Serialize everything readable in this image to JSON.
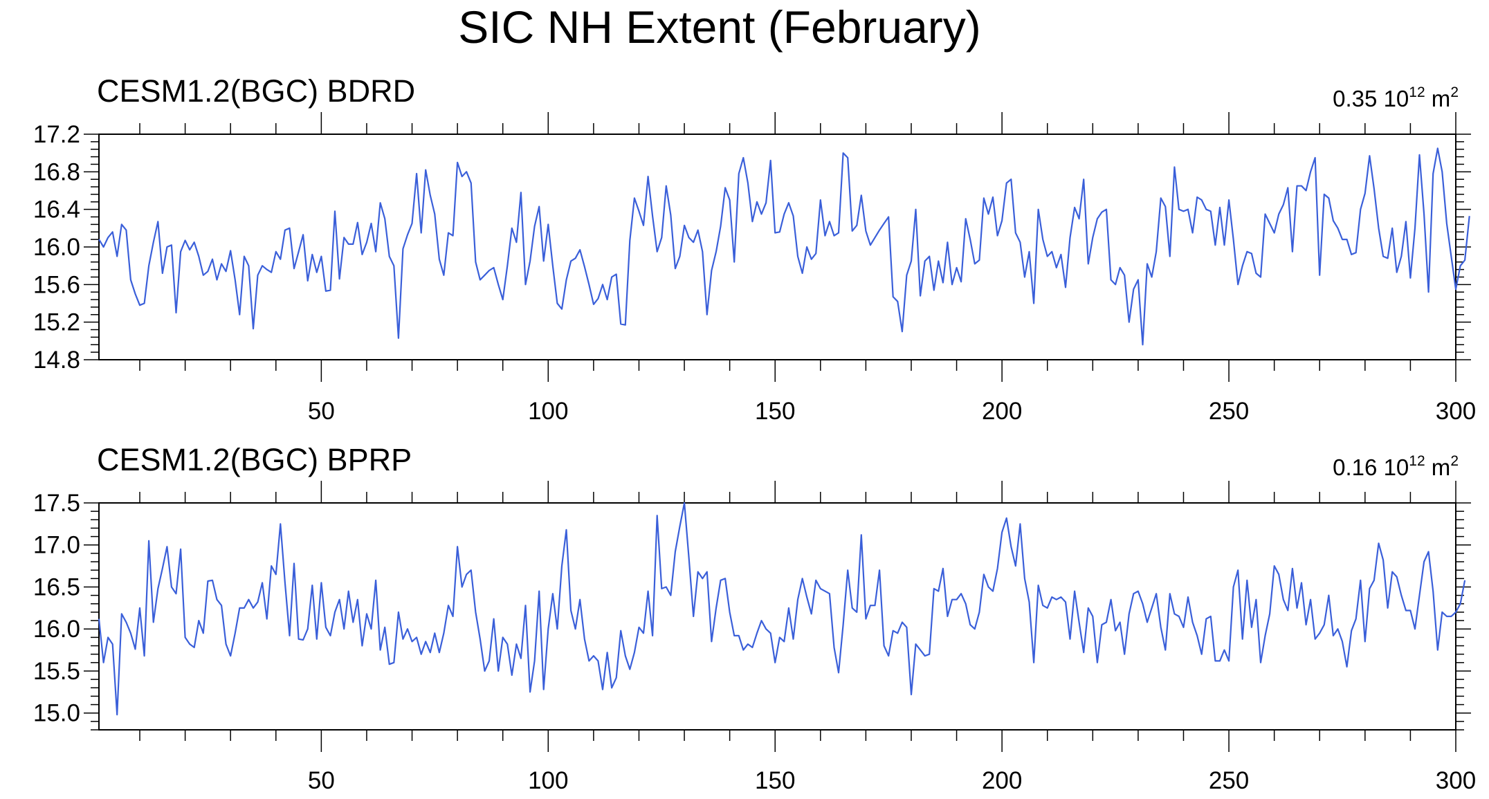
{
  "figure": {
    "title": "SIC NH Extent (February)"
  },
  "chart_data": [
    {
      "type": "line",
      "title": "CESM1.2(BGC) BDRD",
      "annotation": {
        "value": "0.35",
        "base": "10",
        "exp": "12",
        "unit": "m",
        "unit_exp": "2"
      },
      "xlim": [
        1,
        300
      ],
      "ylim": [
        14.8,
        17.2
      ],
      "xticks": [
        50,
        100,
        150,
        200,
        250,
        300
      ],
      "xtick_labels": [
        "50",
        "100",
        "150",
        "200",
        "250",
        "300"
      ],
      "yticks": [
        14.8,
        15.2,
        15.6,
        16.0,
        16.4,
        16.8,
        17.2
      ],
      "ytick_labels": [
        "14.8",
        "15.2",
        "15.6",
        "16.0",
        "16.4",
        "16.8",
        "17.2"
      ],
      "line_color": "#3a5fd9",
      "grid": false,
      "x_start": 1,
      "values": [
        16.08,
        16.0,
        16.1,
        16.16,
        15.9,
        16.24,
        16.18,
        15.65,
        15.5,
        15.38,
        15.4,
        15.8,
        16.05,
        16.27,
        15.72,
        16.0,
        16.02,
        15.3,
        15.95,
        16.07,
        15.97,
        16.05,
        15.9,
        15.7,
        15.74,
        15.87,
        15.65,
        15.82,
        15.74,
        15.96,
        15.65,
        15.28,
        15.9,
        15.8,
        15.13,
        15.7,
        15.8,
        15.76,
        15.73,
        15.95,
        15.87,
        16.18,
        16.2,
        15.77,
        15.95,
        16.13,
        15.64,
        15.92,
        15.73,
        15.9,
        15.53,
        15.54,
        16.38,
        15.66,
        16.1,
        16.03,
        16.03,
        16.26,
        15.92,
        16.05,
        16.25,
        15.95,
        16.47,
        16.3,
        15.9,
        15.8,
        15.03,
        15.98,
        16.13,
        16.25,
        16.78,
        16.15,
        16.82,
        16.55,
        16.35,
        15.87,
        15.7,
        16.15,
        16.12,
        16.9,
        16.75,
        16.8,
        16.68,
        15.84,
        15.65,
        15.7,
        15.75,
        15.78,
        15.6,
        15.44,
        15.8,
        16.2,
        16.05,
        16.58,
        15.6,
        15.85,
        16.22,
        16.43,
        15.85,
        16.24,
        15.8,
        15.4,
        15.34,
        15.65,
        15.85,
        15.88,
        15.97,
        15.79,
        15.6,
        15.39,
        15.45,
        15.6,
        15.44,
        15.68,
        15.71,
        15.18,
        15.17,
        16.07,
        16.52,
        16.38,
        16.23,
        16.75,
        16.33,
        15.95,
        16.1,
        16.65,
        16.34,
        15.77,
        15.9,
        16.23,
        16.1,
        16.05,
        16.18,
        15.95,
        15.28,
        15.75,
        15.95,
        16.22,
        16.63,
        16.5,
        15.84,
        16.78,
        16.95,
        16.68,
        16.27,
        16.48,
        16.35,
        16.47,
        16.92,
        16.15,
        16.16,
        16.35,
        16.47,
        16.33,
        15.9,
        15.72,
        16.0,
        15.87,
        15.93,
        16.5,
        16.12,
        16.27,
        16.12,
        16.15,
        17.0,
        16.95,
        16.17,
        16.23,
        16.55,
        16.17,
        16.02,
        16.1,
        16.18,
        16.25,
        16.32,
        15.47,
        15.42,
        15.1,
        15.7,
        15.85,
        16.4,
        15.48,
        15.85,
        15.9,
        15.54,
        15.85,
        15.62,
        16.05,
        15.6,
        15.78,
        15.63,
        16.3,
        16.08,
        15.82,
        15.86,
        16.52,
        16.35,
        16.53,
        16.12,
        16.28,
        16.68,
        16.72,
        16.15,
        16.05,
        15.68,
        15.95,
        15.4,
        16.4,
        16.08,
        15.9,
        15.95,
        15.78,
        15.92,
        15.57,
        16.1,
        16.42,
        16.3,
        16.72,
        15.82,
        16.1,
        16.3,
        16.37,
        16.4,
        15.65,
        15.6,
        15.78,
        15.7,
        15.2,
        15.55,
        15.65,
        14.96,
        15.82,
        15.68,
        15.95,
        16.52,
        16.43,
        15.9,
        16.85,
        16.4,
        16.38,
        16.4,
        16.15,
        16.53,
        16.5,
        16.4,
        16.38,
        16.02,
        16.42,
        16.02,
        16.5,
        16.08,
        15.6,
        15.8,
        15.95,
        15.93,
        15.72,
        15.68,
        16.35,
        16.25,
        16.15,
        16.35,
        16.45,
        16.63,
        15.95,
        16.65,
        16.65,
        16.6,
        16.8,
        16.95,
        15.7,
        16.56,
        16.52,
        16.28,
        16.2,
        16.08,
        16.08,
        15.92,
        15.94,
        16.4,
        16.57,
        16.97,
        16.62,
        16.2,
        15.9,
        15.88,
        16.2,
        15.73,
        15.9,
        16.27,
        15.67,
        16.2,
        16.98,
        16.35,
        15.52,
        16.78,
        17.05,
        16.8,
        16.25,
        15.9,
        15.55,
        15.8,
        15.86,
        16.33
      ]
    },
    {
      "type": "line",
      "title": "CESM1.2(BGC) BPRP",
      "annotation": {
        "value": "0.16",
        "base": "10",
        "exp": "12",
        "unit": "m",
        "unit_exp": "2"
      },
      "xlim": [
        1,
        300
      ],
      "ylim": [
        14.8,
        17.5
      ],
      "xticks": [
        50,
        100,
        150,
        200,
        250,
        300
      ],
      "xtick_labels": [
        "50",
        "100",
        "150",
        "200",
        "250",
        "300"
      ],
      "yticks": [
        15.0,
        15.5,
        16.0,
        16.5,
        17.0,
        17.5
      ],
      "ytick_labels": [
        "15.0",
        "15.5",
        "16.0",
        "16.5",
        "17.0",
        "17.5"
      ],
      "line_color": "#3a5fd9",
      "grid": false,
      "x_start": 1,
      "values": [
        16.12,
        15.6,
        15.9,
        15.82,
        14.98,
        16.18,
        16.08,
        15.95,
        15.76,
        16.25,
        15.68,
        17.05,
        16.08,
        16.48,
        16.72,
        16.98,
        16.5,
        16.42,
        16.95,
        15.9,
        15.82,
        15.78,
        16.1,
        15.95,
        16.57,
        16.58,
        16.35,
        16.28,
        15.82,
        15.68,
        15.95,
        16.25,
        16.25,
        16.35,
        16.25,
        16.32,
        16.55,
        16.12,
        16.75,
        16.65,
        17.25,
        16.55,
        15.92,
        16.78,
        15.88,
        15.87,
        16.0,
        16.52,
        15.88,
        16.55,
        16.02,
        15.92,
        16.2,
        16.35,
        16.0,
        16.45,
        16.08,
        16.35,
        15.8,
        16.18,
        16.0,
        16.58,
        15.75,
        16.02,
        15.58,
        15.6,
        16.2,
        15.88,
        16.0,
        15.85,
        15.9,
        15.7,
        15.85,
        15.72,
        15.95,
        15.72,
        15.95,
        16.28,
        16.15,
        16.98,
        16.5,
        16.65,
        16.7,
        16.2,
        15.88,
        15.5,
        15.62,
        16.12,
        15.5,
        15.9,
        15.82,
        15.45,
        15.82,
        15.65,
        16.28,
        15.25,
        15.62,
        16.45,
        15.28,
        16.0,
        16.42,
        16.0,
        16.75,
        17.18,
        16.22,
        16.0,
        16.35,
        15.88,
        15.62,
        15.68,
        15.62,
        15.28,
        15.72,
        15.3,
        15.42,
        15.98,
        15.68,
        15.52,
        15.72,
        16.02,
        15.95,
        16.45,
        15.92,
        17.35,
        16.48,
        16.5,
        16.4,
        16.92,
        17.22,
        17.5,
        16.85,
        16.15,
        16.68,
        16.6,
        16.68,
        15.85,
        16.25,
        16.58,
        16.6,
        16.2,
        15.92,
        15.92,
        15.75,
        15.82,
        15.78,
        15.95,
        16.1,
        16.0,
        15.95,
        15.6,
        15.9,
        15.85,
        16.25,
        15.88,
        16.35,
        16.6,
        16.38,
        16.18,
        16.58,
        16.48,
        16.45,
        16.42,
        15.78,
        15.48,
        16.05,
        16.7,
        16.25,
        16.2,
        17.12,
        16.12,
        16.28,
        16.28,
        16.7,
        15.8,
        15.68,
        15.98,
        15.95,
        16.08,
        16.02,
        15.22,
        15.82,
        15.75,
        15.68,
        15.7,
        16.48,
        16.45,
        16.72,
        16.15,
        16.35,
        16.35,
        16.42,
        16.3,
        16.05,
        16.0,
        16.2,
        16.65,
        16.5,
        16.45,
        16.72,
        17.15,
        17.32,
        16.98,
        16.75,
        17.25,
        16.6,
        16.32,
        15.6,
        16.52,
        16.28,
        16.25,
        16.38,
        16.35,
        16.38,
        16.32,
        15.88,
        16.45,
        16.08,
        15.72,
        16.25,
        16.15,
        15.6,
        16.05,
        16.08,
        16.35,
        15.98,
        16.08,
        15.7,
        16.18,
        16.42,
        16.45,
        16.3,
        16.08,
        16.25,
        16.42,
        16.02,
        15.75,
        16.42,
        16.18,
        16.15,
        16.02,
        16.38,
        16.08,
        15.92,
        15.7,
        16.12,
        16.15,
        15.62,
        15.62,
        15.75,
        15.62,
        16.5,
        16.7,
        15.88,
        16.58,
        16.02,
        16.35,
        15.6,
        15.92,
        16.18,
        16.75,
        16.65,
        16.35,
        16.22,
        16.72,
        16.25,
        16.55,
        16.05,
        16.35,
        15.88,
        15.95,
        16.05,
        16.4,
        15.92,
        16.0,
        15.85,
        15.55,
        15.98,
        16.12,
        16.58,
        15.85,
        16.48,
        16.58,
        17.02,
        16.82,
        16.25,
        16.68,
        16.62,
        16.4,
        16.22,
        16.22,
        16.0,
        16.4,
        16.8,
        16.92,
        16.45,
        15.75,
        16.2,
        16.15,
        16.15,
        16.2,
        16.3,
        16.58
      ]
    }
  ]
}
